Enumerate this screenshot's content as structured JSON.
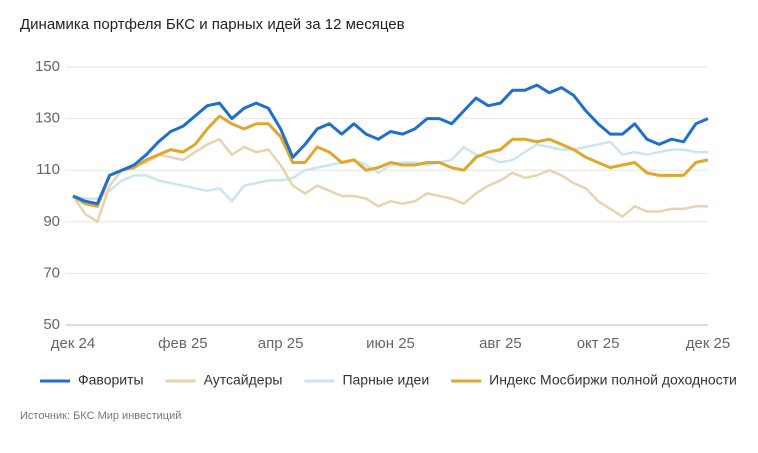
{
  "chart_data": {
    "type": "line",
    "title": "Динамика портфеля БКС и парных идей за 12 месяцев",
    "source": "Источник: БКС Мир инвестиций",
    "categories": [
      "дек 24",
      null,
      null,
      null,
      null,
      null,
      null,
      null,
      null,
      "фев 25",
      null,
      null,
      null,
      null,
      null,
      null,
      null,
      "апр 25",
      null,
      null,
      null,
      null,
      null,
      null,
      null,
      null,
      "июн 25",
      null,
      null,
      null,
      null,
      null,
      null,
      null,
      null,
      "авг 25",
      null,
      null,
      null,
      null,
      null,
      null,
      null,
      "окт 25",
      null,
      null,
      null,
      null,
      null,
      null,
      null,
      null,
      "дек 25"
    ],
    "ylim": [
      50,
      150
    ],
    "yticks": [
      50,
      70,
      90,
      110,
      130,
      150
    ],
    "grid": true,
    "legend": "bottom",
    "series": [
      {
        "name": "Фавориты",
        "color": "#1f6fd1",
        "values": [
          100,
          98,
          97,
          108,
          110,
          112,
          116,
          121,
          125,
          127,
          131,
          135,
          136,
          130,
          134,
          136,
          134,
          126,
          115,
          120,
          126,
          128,
          124,
          128,
          124,
          122,
          125,
          124,
          126,
          130,
          130,
          128,
          133,
          138,
          135,
          136,
          141,
          141,
          143,
          140,
          142,
          139,
          133,
          128,
          124,
          124,
          128,
          122,
          120,
          122,
          121,
          128,
          130
        ]
      },
      {
        "name": "Аутсайдеры",
        "color": "#e6d3b0",
        "values": [
          100,
          93,
          90,
          104,
          110,
          112,
          113,
          116,
          115,
          114,
          117,
          120,
          122,
          116,
          119,
          117,
          118,
          112,
          104,
          101,
          104,
          102,
          100,
          100,
          99,
          96,
          98,
          97,
          98,
          101,
          100,
          99,
          97,
          101,
          104,
          106,
          109,
          107,
          108,
          110,
          108,
          105,
          103,
          98,
          95,
          92,
          96,
          94,
          94,
          95,
          95,
          96,
          96
        ]
      },
      {
        "name": "Парные идеи",
        "color": "#c9e6f0",
        "values": [
          100,
          99,
          99,
          102,
          106,
          108,
          108,
          106,
          105,
          104,
          103,
          102,
          103,
          98,
          104,
          105,
          106,
          106,
          107,
          110,
          111,
          112,
          113,
          114,
          112,
          109,
          112,
          113,
          113,
          112,
          113,
          114,
          119,
          116,
          115,
          113,
          114,
          117,
          120,
          119,
          118,
          118,
          119,
          120,
          121,
          116,
          117,
          116,
          117,
          118,
          118,
          117,
          117
        ]
      },
      {
        "name": "Индекс Мосбиржи полной доходности",
        "color": "#e2a62a",
        "values": [
          100,
          97,
          96,
          108,
          110,
          111,
          114,
          116,
          118,
          117,
          120,
          126,
          131,
          128,
          126,
          128,
          128,
          123,
          113,
          113,
          119,
          117,
          113,
          114,
          110,
          111,
          113,
          112,
          112,
          113,
          113,
          111,
          110,
          115,
          117,
          118,
          122,
          122,
          121,
          122,
          120,
          118,
          115,
          113,
          111,
          112,
          113,
          109,
          108,
          108,
          108,
          113,
          114
        ]
      }
    ]
  }
}
